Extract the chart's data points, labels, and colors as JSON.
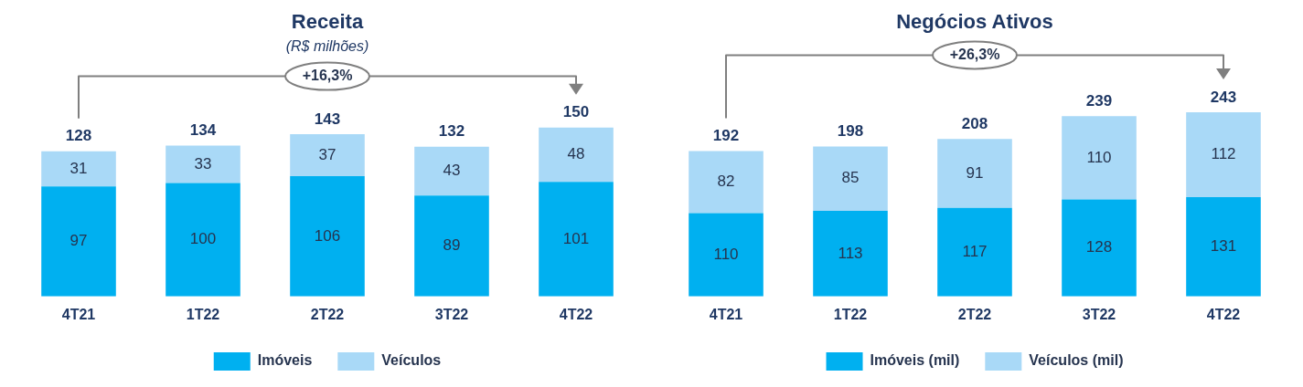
{
  "chart_data": [
    {
      "type": "bar",
      "title": "Receita",
      "subtitle": "(R$ milhões)",
      "categories": [
        "4T21",
        "1T22",
        "2T22",
        "3T22",
        "4T22"
      ],
      "stacked": true,
      "grid": false,
      "legend": "bottom",
      "data_labels": true,
      "series": [
        {
          "name": "Imóveis",
          "color": "#00b0f0",
          "values": [
            97,
            100,
            106,
            89,
            101
          ]
        },
        {
          "name": "Veículos",
          "color": "#a9d9f7",
          "values": [
            31,
            33,
            37,
            43,
            48
          ]
        }
      ],
      "totals": [
        "128",
        "134",
        "143",
        "132",
        "150"
      ],
      "annotations": [
        "+16,3%"
      ]
    },
    {
      "type": "bar",
      "title": "Negócios Ativos",
      "categories": [
        "4T21",
        "1T22",
        "2T22",
        "3T22",
        "4T22"
      ],
      "stacked": true,
      "grid": false,
      "legend": "bottom",
      "data_labels": true,
      "series": [
        {
          "name": "Imóveis (mil)",
          "color": "#00b0f0",
          "values": [
            110,
            113,
            117,
            128,
            131
          ]
        },
        {
          "name": "Veículos (mil)",
          "color": "#a9d9f7",
          "values": [
            82,
            85,
            91,
            110,
            112
          ]
        }
      ],
      "totals": [
        "192",
        "198",
        "208",
        "239",
        "243"
      ],
      "annotations": [
        "+26,3%"
      ]
    }
  ]
}
